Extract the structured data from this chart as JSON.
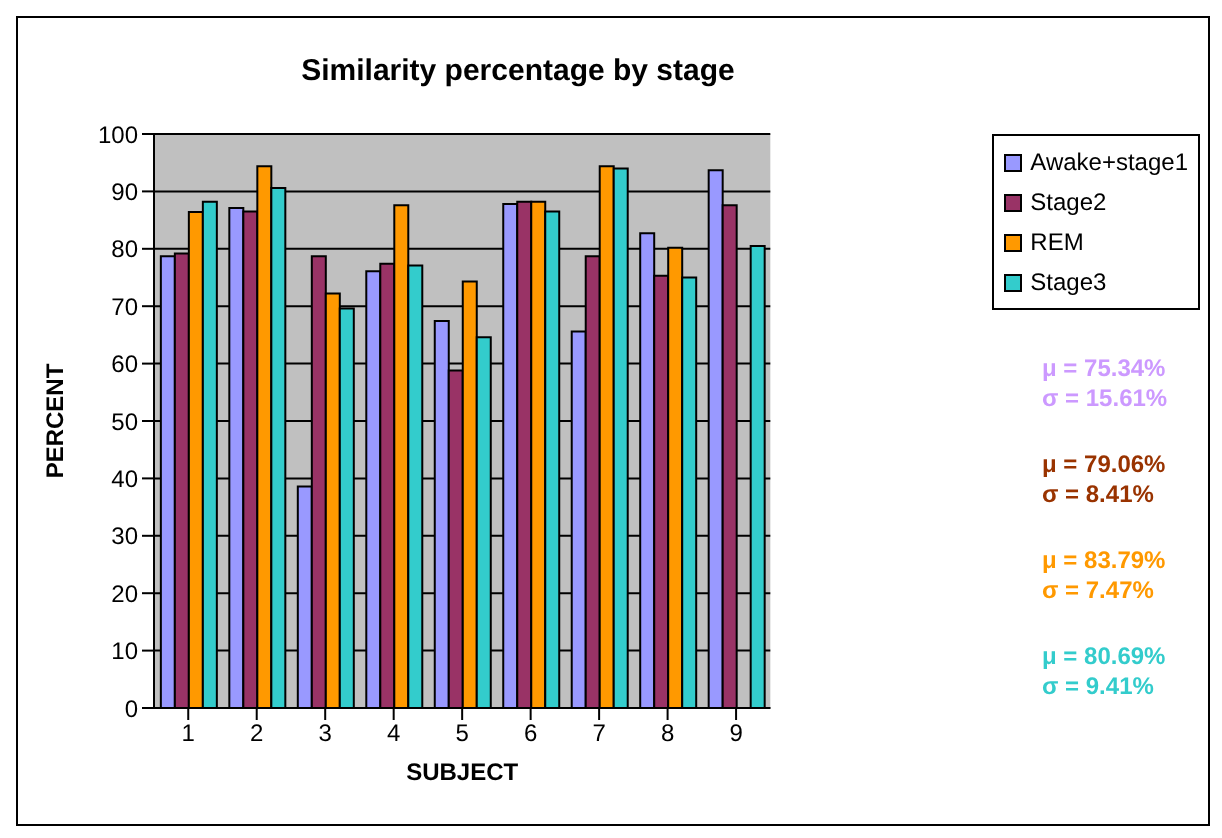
{
  "chart_data": {
    "type": "bar",
    "title": "Similarity percentage by stage",
    "xlabel": "SUBJECT",
    "ylabel": "PERCENT",
    "categories": [
      "1",
      "2",
      "3",
      "4",
      "5",
      "6",
      "7",
      "8",
      "9"
    ],
    "series": [
      {
        "name": "Awake+stage1",
        "color": "#9999ff",
        "values": [
          78.7,
          87.1,
          38.6,
          76.1,
          67.4,
          87.8,
          65.6,
          82.7,
          93.7
        ]
      },
      {
        "name": "Stage2",
        "color": "#993366",
        "values": [
          79.2,
          86.5,
          78.7,
          77.4,
          58.8,
          88.2,
          78.7,
          75.3,
          87.6
        ]
      },
      {
        "name": "REM",
        "color": "#ff9900",
        "values": [
          86.4,
          94.4,
          72.2,
          87.6,
          74.3,
          88.2,
          94.4,
          80.2,
          null
        ]
      },
      {
        "name": "Stage3",
        "color": "#33cccc",
        "values": [
          88.2,
          90.6,
          69.6,
          77.1,
          64.6,
          86.5,
          94.0,
          75.0,
          80.5
        ]
      }
    ],
    "ylim": [
      0,
      100
    ],
    "yticks": [
      0,
      10,
      20,
      30,
      40,
      50,
      60,
      70,
      80,
      90,
      100
    ],
    "grid": "y",
    "legend": "top right",
    "annotations": [
      "μ = 75.34%",
      "σ = 15.61%",
      "μ = 79.06%",
      "σ = 8.41%",
      "μ = 83.79%",
      "σ = 7.47%",
      "μ = 80.69%",
      "σ = 9.41%"
    ]
  }
}
